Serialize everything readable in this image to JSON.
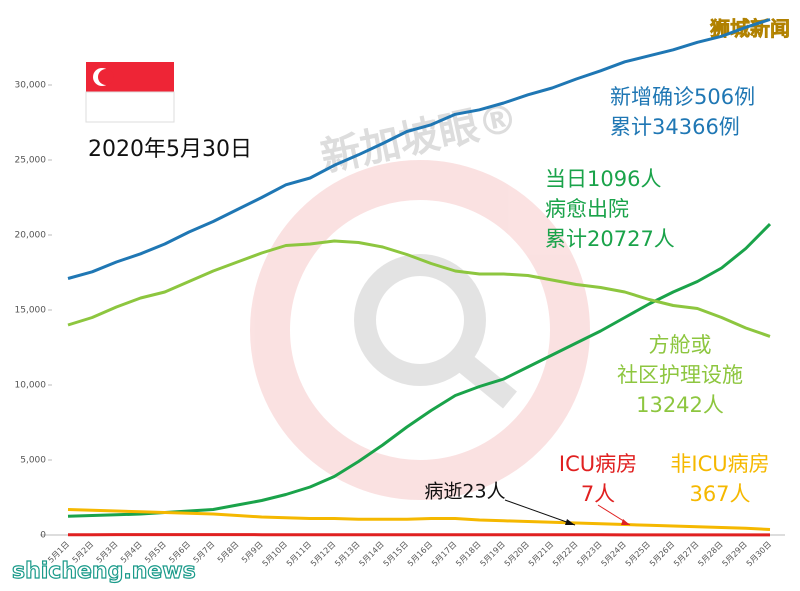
{
  "chart_data": {
    "type": "line",
    "date_label": "2020年5月30日",
    "watermark": "新加坡眼®",
    "brand_top": "狮城新闻",
    "brand_bottom": "shicheng.news",
    "categories": [
      "5月1日",
      "5月2日",
      "5月3日",
      "5月4日",
      "5月5日",
      "5月6日",
      "5月7日",
      "5月8日",
      "5月9日",
      "5月10日",
      "5月11日",
      "5月12日",
      "5月13日",
      "5月14日",
      "5月15日",
      "5月16日",
      "5月17日",
      "5月18日",
      "5月19日",
      "5月20日",
      "5月21日",
      "5月22日",
      "5月23日",
      "5月24日",
      "5月25日",
      "5月26日",
      "5月27日",
      "5月28日",
      "5月29日",
      "5月30日"
    ],
    "series": [
      {
        "color": "#1f77b4",
        "values": [
          17100,
          17550,
          18200,
          18750,
          19400,
          20200,
          20900,
          21700,
          22500,
          23350,
          23800,
          24650,
          25350,
          26100,
          26900,
          27350,
          28050,
          28350,
          28800,
          29350,
          29800,
          30400,
          30950,
          31550,
          31950,
          32350,
          32850,
          33250,
          33850,
          34366
        ]
      },
      {
        "color": "#1aa34a",
        "values": [
          1250,
          1300,
          1350,
          1400,
          1500,
          1600,
          1700,
          2000,
          2300,
          2700,
          3200,
          3900,
          4900,
          6000,
          7200,
          8300,
          9300,
          9900,
          10400,
          11200,
          12000,
          12800,
          13600,
          14500,
          15400,
          16200,
          16900,
          17800,
          19100,
          20727
        ]
      },
      {
        "color": "#8dc63f",
        "values": [
          14000,
          14500,
          15200,
          15800,
          16200,
          16900,
          17600,
          18200,
          18800,
          19300,
          19400,
          19600,
          19500,
          19200,
          18700,
          18100,
          17600,
          17400,
          17400,
          17300,
          17000,
          16700,
          16500,
          16200,
          15700,
          15300,
          15100,
          14500,
          13800,
          13242
        ]
      },
      {
        "color": "#f5b800",
        "values": [
          1700,
          1650,
          1600,
          1550,
          1500,
          1450,
          1400,
          1300,
          1200,
          1150,
          1100,
          1100,
          1050,
          1050,
          1050,
          1100,
          1100,
          1000,
          950,
          900,
          850,
          800,
          750,
          700,
          650,
          600,
          550,
          500,
          450,
          367
        ]
      },
      {
        "color": "#e02020",
        "values": [
          20,
          22,
          24,
          25,
          26,
          25,
          24,
          24,
          23,
          22,
          21,
          20,
          20,
          19,
          18,
          17,
          16,
          15,
          14,
          14,
          13,
          12,
          11,
          10,
          10,
          9,
          9,
          8,
          8,
          7
        ]
      }
    ],
    "annotations": [
      {
        "lines": [
          "新增确诊506例",
          "累计34366例"
        ],
        "color": "#1f77b4"
      },
      {
        "lines": [
          "当日1096人",
          "病愈出院",
          "累计20727人"
        ],
        "color": "#1aa34a"
      },
      {
        "lines": [
          "方舱或",
          "社区护理设施",
          "13242人"
        ],
        "color": "#8dc63f"
      },
      {
        "lines": [
          "非ICU病房",
          "367人"
        ],
        "color": "#f5b800"
      },
      {
        "lines": [
          "ICU病房",
          "7人"
        ],
        "color": "#e02020"
      },
      {
        "lines": [
          "病逝23人"
        ],
        "color": "#111111"
      }
    ],
    "ylim": [
      0,
      35000
    ],
    "yticks": [
      0,
      {
        "value": 5000,
        "label": "5,000"
      },
      {
        "value": 10000,
        "label": "10,000"
      },
      {
        "value": 15000,
        "label": "15,000"
      },
      {
        "value": 20000,
        "label": "20,000"
      },
      {
        "value": 25000,
        "label": "25,000"
      },
      {
        "value": 30000,
        "label": "30,000"
      }
    ],
    "grid": false
  }
}
